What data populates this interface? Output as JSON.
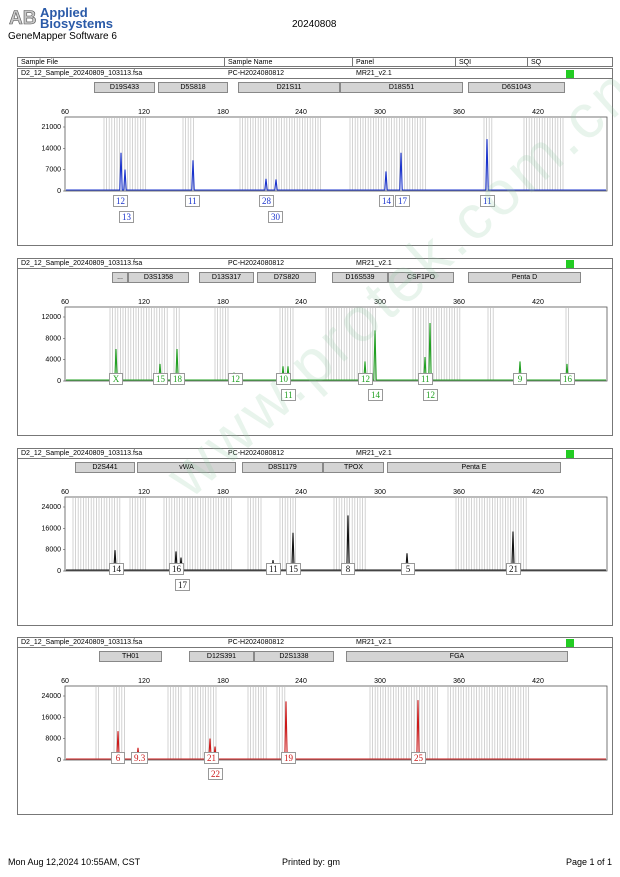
{
  "header": {
    "brand_line1": "Applied",
    "brand_line2": "Biosystems",
    "software": "GeneMapper Software 6",
    "date": "20240808",
    "logo_letters": "AB"
  },
  "columns": {
    "sample_file": "Sample File",
    "sample_name": "Sample Name",
    "panel": "Panel",
    "sqi": "SQI",
    "sq": "SQ"
  },
  "footer": {
    "timestamp": "Mon Aug 12,2024 10:55AM, CST",
    "printed_by": "Printed by: gm",
    "page": "Page 1 of 1"
  },
  "watermark": "www.protek.com.cn",
  "panels": [
    {
      "file": "D2_12_Sample_20240809_103113.fsa",
      "sample": "PC-H2024080812",
      "panel": "MR21_v2.1",
      "quality_color": "#22cc22",
      "dye_color": "#1a33cc",
      "markers": [
        "D19S433",
        "D5S818",
        "D21S11",
        "D18S51",
        "D6S1043"
      ],
      "y_ticks": [
        "21000",
        "14000",
        "7000",
        "0"
      ],
      "x_ticks": [
        "60",
        "120",
        "180",
        "240",
        "300",
        "360",
        "420"
      ],
      "alleles": [
        "12",
        "13",
        "11",
        "28",
        "30",
        "14",
        "17",
        "11"
      ]
    },
    {
      "file": "D2_12_Sample_20240809_103113.fsa",
      "sample": "PC-H2024080812",
      "panel": "MR21_v2.1",
      "quality_color": "#22cc22",
      "dye_color": "#22a022",
      "markers": [
        "...",
        "D3S1358",
        "D13S317",
        "D7S820",
        "D16S539",
        "CSF1PO",
        "Penta D"
      ],
      "y_ticks": [
        "12000",
        "8000",
        "4000",
        "0"
      ],
      "x_ticks": [
        "60",
        "120",
        "180",
        "240",
        "300",
        "360",
        "420"
      ],
      "alleles": [
        "X",
        "15",
        "18",
        "12",
        "10",
        "11",
        "12",
        "14",
        "11",
        "12",
        "9",
        "16"
      ]
    },
    {
      "file": "D2_12_Sample_20240809_103113.fsa",
      "sample": "PC-H2024080812",
      "panel": "MR21_v2.1",
      "quality_color": "#22cc22",
      "dye_color": "#111111",
      "markers": [
        "D2S441",
        "vWA",
        "D8S1179",
        "TPOX",
        "Penta E"
      ],
      "y_ticks": [
        "24000",
        "16000",
        "8000",
        "0"
      ],
      "x_ticks": [
        "60",
        "120",
        "180",
        "240",
        "300",
        "360",
        "420"
      ],
      "alleles": [
        "14",
        "16",
        "17",
        "11",
        "15",
        "8",
        "5",
        "21"
      ]
    },
    {
      "file": "D2_12_Sample_20240809_103113.fsa",
      "sample": "PC-H2024080812",
      "panel": "MR21_v2.1",
      "quality_color": "#22cc22",
      "dye_color": "#cc1a1a",
      "markers": [
        "TH01",
        "D12S391",
        "D2S1338",
        "FGA"
      ],
      "y_ticks": [
        "24000",
        "16000",
        "8000",
        "0"
      ],
      "x_ticks": [
        "60",
        "120",
        "180",
        "240",
        "300",
        "360",
        "420"
      ],
      "alleles": [
        "6",
        "9.3",
        "21",
        "22",
        "19",
        "25"
      ]
    }
  ]
}
